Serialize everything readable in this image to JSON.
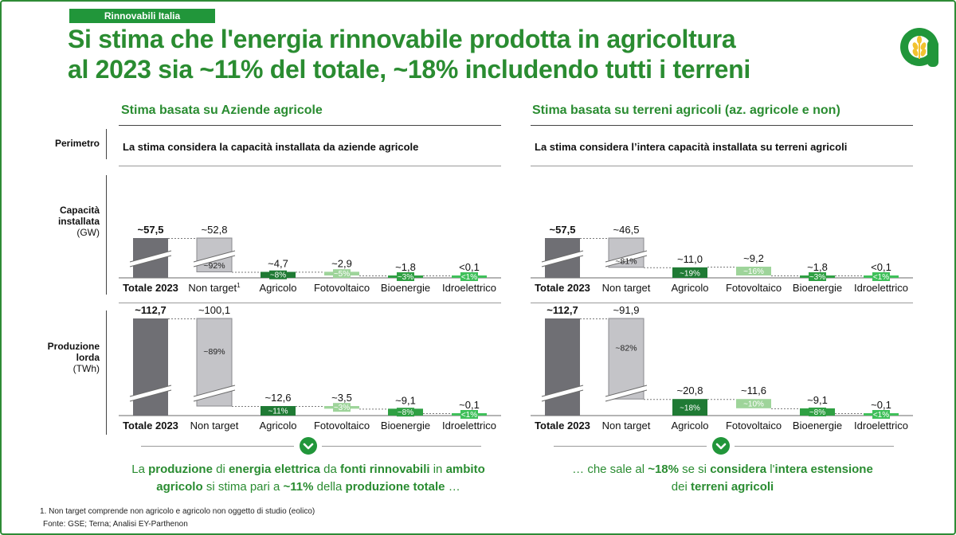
{
  "tag": "Rinnovabili Italia",
  "title_line1": "Si stima che l'energia rinnovabile prodotta in agricoltura",
  "title_line2": "al 2023 sia ~11% del totale, ~18% includendo tutti i terreni",
  "logo_icon": "wheat-a-logo-icon",
  "colors": {
    "green_dark": "#1f7a34",
    "green_mid": "#2fa043",
    "green_light": "#9ed49a",
    "grey_dark": "#6f6f74",
    "grey_light": "#c4c4c8",
    "brand": "#2a8c31"
  },
  "left": {
    "heading": "Stima basata su Aziende agricole",
    "perimetro": "La stima considera la capacità installata da aziende agricole",
    "summary": [
      [
        [
          "La ",
          false
        ],
        [
          "produzione",
          true
        ],
        [
          " di ",
          false
        ],
        [
          "energia elettrica",
          true
        ],
        [
          " da ",
          false
        ],
        [
          "fonti rinnovabili",
          true
        ],
        [
          " in ",
          false
        ],
        [
          "ambito",
          true
        ]
      ],
      [
        [
          "agricolo",
          true
        ],
        [
          " si stima pari a ",
          false
        ],
        [
          "~11%",
          true
        ],
        [
          " della ",
          false
        ],
        [
          "produzione totale",
          true
        ],
        [
          " …",
          false
        ]
      ]
    ]
  },
  "right": {
    "heading": "Stima basata su terreni agricoli (az. agricole e non)",
    "perimetro": "La stima considera l’intera capacità installata su terreni agricoli",
    "summary": [
      [
        [
          "… che sale al ",
          false
        ],
        [
          "~18%",
          true
        ],
        [
          " se si ",
          false
        ],
        [
          "considera",
          true
        ],
        [
          " l'",
          false
        ],
        [
          "intera estensione",
          true
        ]
      ],
      [
        [
          "dei ",
          false
        ],
        [
          "terreni agricoli",
          true
        ]
      ]
    ]
  },
  "row_labels": {
    "perimetro": "Perimetro",
    "capacita": [
      "Capacità",
      "installata",
      "(GW)"
    ],
    "produzione": [
      "Produzione",
      "lorda",
      "(TWh)"
    ]
  },
  "footnotes": [
    "1.  Non target comprende non agricolo e agricolo non oggetto di studio (eolico)",
    "Fonte: GSE; Terna; Analisi EY-Parthenon"
  ],
  "chart_data": [
    {
      "type": "bar",
      "subtype": "waterfall",
      "name": "left-capacita",
      "categories": [
        "Totale 2023",
        "Non target",
        "Agricolo",
        "Fotovoltaico",
        "Bioenergie",
        "Idroelettrico"
      ],
      "category_superscript": [
        "",
        "1",
        "",
        "",
        "",
        ""
      ],
      "values": [
        57.5,
        52.8,
        4.7,
        2.9,
        1.8,
        0.1
      ],
      "value_labels": [
        "~57,5",
        "~52,8",
        "~4,7",
        "~2,9",
        "~1,8",
        "<0,1"
      ],
      "share_labels": [
        "",
        "~92%",
        "~8%",
        "~5%",
        "~3%",
        "<1%"
      ],
      "bar_colors": [
        "#6f6f74",
        "#c4c4c8",
        "#1f7a34",
        "#9ed49a",
        "#2fa043",
        "#3fc05a"
      ],
      "axis_break": true
    },
    {
      "type": "bar",
      "subtype": "waterfall",
      "name": "right-capacita",
      "categories": [
        "Totale 2023",
        "Non target",
        "Agricolo",
        "Fotovoltaico",
        "Bioenergie",
        "Idroelettrico"
      ],
      "category_superscript": [
        "",
        "",
        "",
        "",
        "",
        ""
      ],
      "values": [
        57.5,
        46.5,
        11.0,
        9.2,
        1.8,
        0.1
      ],
      "value_labels": [
        "~57,5",
        "~46,5",
        "~11,0",
        "~9,2",
        "~1,8",
        "<0,1"
      ],
      "share_labels": [
        "",
        "~81%",
        "~19%",
        "~16%",
        "~3%",
        "<1%"
      ],
      "bar_colors": [
        "#6f6f74",
        "#c4c4c8",
        "#1f7a34",
        "#9ed49a",
        "#2fa043",
        "#3fc05a"
      ],
      "axis_break": true
    },
    {
      "type": "bar",
      "subtype": "waterfall",
      "name": "left-produzione",
      "categories": [
        "Totale 2023",
        "Non target",
        "Agricolo",
        "Fotovoltaico",
        "Bioenergie",
        "Idroelettrico"
      ],
      "category_superscript": [
        "",
        "",
        "",
        "",
        "",
        ""
      ],
      "values": [
        112.7,
        100.1,
        12.6,
        3.5,
        9.1,
        0.1
      ],
      "value_labels": [
        "~112,7",
        "~100,1",
        "~12,6",
        "~3,5",
        "~9,1",
        "~0,1"
      ],
      "share_labels": [
        "",
        "~89%",
        "~11%",
        "~3%",
        "~8%",
        "<1%"
      ],
      "bar_colors": [
        "#6f6f74",
        "#c4c4c8",
        "#1f7a34",
        "#9ed49a",
        "#2fa043",
        "#3fc05a"
      ],
      "axis_break": true
    },
    {
      "type": "bar",
      "subtype": "waterfall",
      "name": "right-produzione",
      "categories": [
        "Totale 2023",
        "Non target",
        "Agricolo",
        "Fotovoltaico",
        "Bioenergie",
        "Idroelettrico"
      ],
      "category_superscript": [
        "",
        "",
        "",
        "",
        "",
        ""
      ],
      "values": [
        112.7,
        91.9,
        20.8,
        11.6,
        9.1,
        0.1
      ],
      "value_labels": [
        "~112,7",
        "~91,9",
        "~20,8",
        "~11,6",
        "~9,1",
        "~0,1"
      ],
      "share_labels": [
        "",
        "~82%",
        "~18%",
        "~10%",
        "~8%",
        "<1%"
      ],
      "bar_colors": [
        "#6f6f74",
        "#c4c4c8",
        "#1f7a34",
        "#9ed49a",
        "#2fa043",
        "#3fc05a"
      ],
      "axis_break": true
    }
  ]
}
